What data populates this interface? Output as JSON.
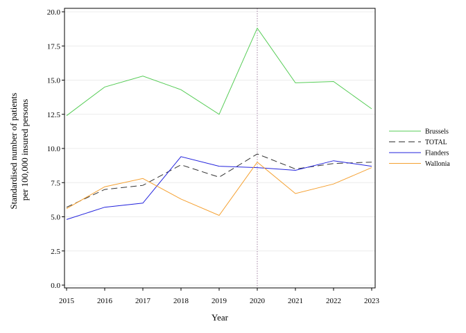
{
  "chart_data": {
    "type": "line",
    "title": "",
    "xlabel": "Year",
    "ylabel_lines": [
      "Standardised number of patients",
      "per 100,000 insured persons"
    ],
    "x": [
      2015,
      2016,
      2017,
      2018,
      2019,
      2020,
      2021,
      2022,
      2023
    ],
    "x_tick_labels": [
      "2015",
      "2016",
      "2017",
      "2018",
      "2019",
      "2020",
      "2021",
      "2022",
      "2023"
    ],
    "y_ticks": [
      0,
      2.5,
      5,
      7.5,
      10,
      12.5,
      15,
      17.5,
      20
    ],
    "y_tick_labels": [
      "0.0",
      "2.5",
      "5.0",
      "7.5",
      "10.0",
      "12.5",
      "15.0",
      "17.5",
      "20.0"
    ],
    "ylim": [
      0,
      20
    ],
    "grid": "horizontal",
    "legend_position": "right",
    "reference_line_x": 2020,
    "series": [
      {
        "name": "Brussels",
        "color": "#55cc55",
        "dash": "solid",
        "values": [
          12.4,
          14.5,
          15.3,
          14.3,
          12.5,
          18.8,
          14.8,
          14.9,
          12.9
        ]
      },
      {
        "name": "TOTAL",
        "color": "#333333",
        "dash": "dashed",
        "values": [
          5.7,
          7.0,
          7.3,
          8.8,
          7.9,
          9.6,
          8.5,
          8.9,
          9.0
        ]
      },
      {
        "name": "Flanders",
        "color": "#2222dd",
        "dash": "solid",
        "values": [
          4.8,
          5.7,
          6.0,
          9.4,
          8.7,
          8.6,
          8.4,
          9.1,
          8.7
        ]
      },
      {
        "name": "Wallonia",
        "color": "#f5a030",
        "dash": "solid",
        "values": [
          5.6,
          7.2,
          7.8,
          6.3,
          5.1,
          9.0,
          6.7,
          7.4,
          8.6
        ]
      }
    ]
  }
}
